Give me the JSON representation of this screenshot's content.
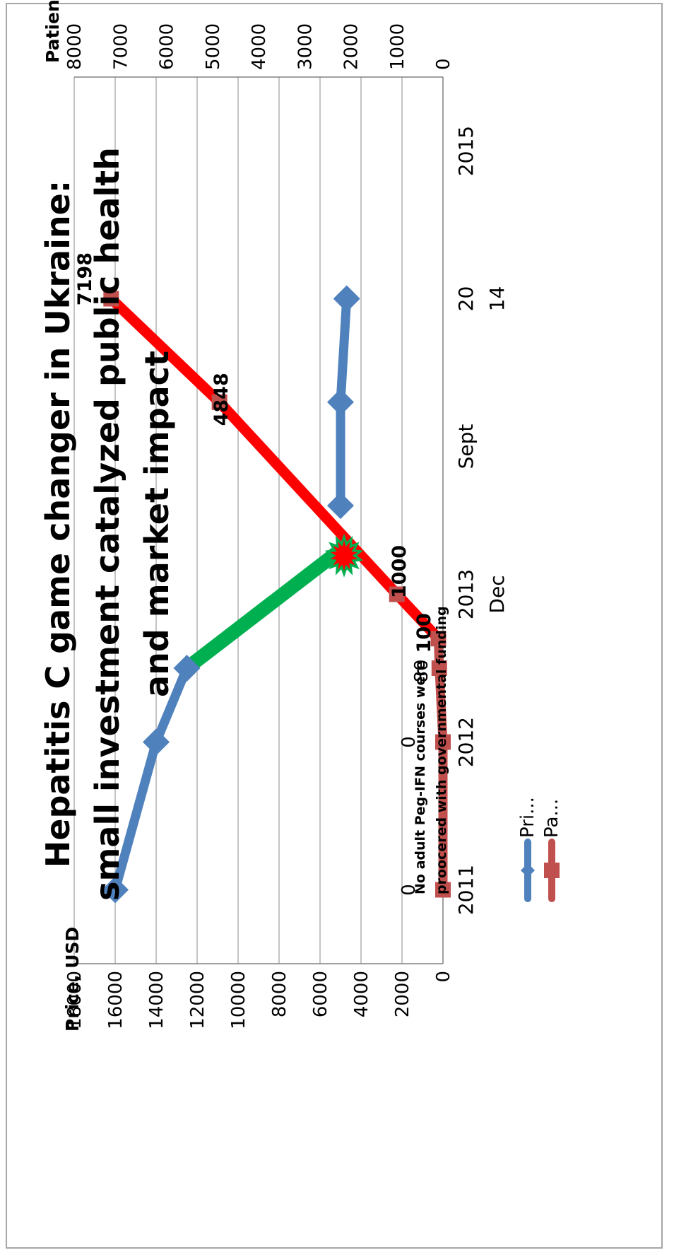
{
  "chart_data": {
    "type": "line",
    "title_lines": [
      "Hepatitis C game changer in Ukraine:",
      "small investment catalyzed public health",
      "and market impact"
    ],
    "categories": [
      "2011",
      "2012",
      "2013",
      "Sept",
      "20 14",
      "2015"
    ],
    "category_labels": [
      {
        "lines": [
          "2011"
        ]
      },
      {
        "lines": [
          "2012"
        ]
      },
      {
        "lines": [
          "2013",
          "Dec"
        ]
      },
      {
        "lines": [
          "Sept"
        ]
      },
      {
        "lines": [
          "20",
          "14"
        ]
      },
      {
        "lines": [
          "2015"
        ]
      }
    ],
    "y_left": {
      "label": "Price, USD",
      "min": 0,
      "max": 18000,
      "step": 2000,
      "ticks": [
        "0",
        "2000",
        "4000",
        "6000",
        "8000",
        "10000",
        "12000",
        "14000",
        "16000",
        "18000"
      ]
    },
    "y_right": {
      "label": "Patient",
      "min": 0,
      "max": 8000,
      "step": 1000,
      "ticks": [
        "0",
        "1000",
        "2000",
        "3000",
        "4000",
        "5000",
        "6000",
        "7000",
        "8000"
      ]
    },
    "series": [
      {
        "name": "Pri...",
        "axis": "left",
        "color": "#4f81bd",
        "marker": "diamond",
        "points": [
          [
            0,
            16000
          ],
          [
            1,
            14000
          ],
          [
            1.5,
            12500
          ],
          [
            2.6,
            5000
          ],
          [
            3.3,
            5000
          ],
          [
            4,
            4700
          ]
        ]
      },
      {
        "name": "Pa...",
        "axis": "right",
        "color": "#c0504d",
        "marker": "square",
        "points": [
          [
            0,
            0
          ],
          [
            1,
            0
          ],
          [
            1.5,
            80
          ],
          [
            1.7,
            100
          ],
          [
            2,
            1000
          ],
          [
            3.3,
            4848
          ],
          [
            4,
            7198
          ]
        ]
      }
    ],
    "highlight": {
      "color": "#00b050",
      "from": [
        1.5,
        12500
      ],
      "to": [
        2.3,
        5000
      ],
      "burst_fill": "#ff0000"
    },
    "red_segment": {
      "color": "#ff0000",
      "from_index": 3
    },
    "data_labels": [
      {
        "x": 0,
        "value": "0",
        "series": "Pa..."
      },
      {
        "x": 1,
        "value": "0",
        "series": "Pa..."
      },
      {
        "x": 1.5,
        "value": "80",
        "series": "Pa..."
      },
      {
        "x": 1.7,
        "value": "100",
        "series": "Pa..."
      },
      {
        "x": 2,
        "value": "1000",
        "series": "Pa..."
      },
      {
        "x": 3.3,
        "value": "4848",
        "series": "Pa..."
      },
      {
        "x": 4,
        "value": "7198",
        "series": "Pa..."
      }
    ],
    "annotation_lines": [
      "No adult Peg-IFN courses were",
      "proocered with governmental funding"
    ],
    "legend_position": "right",
    "grid": true
  }
}
